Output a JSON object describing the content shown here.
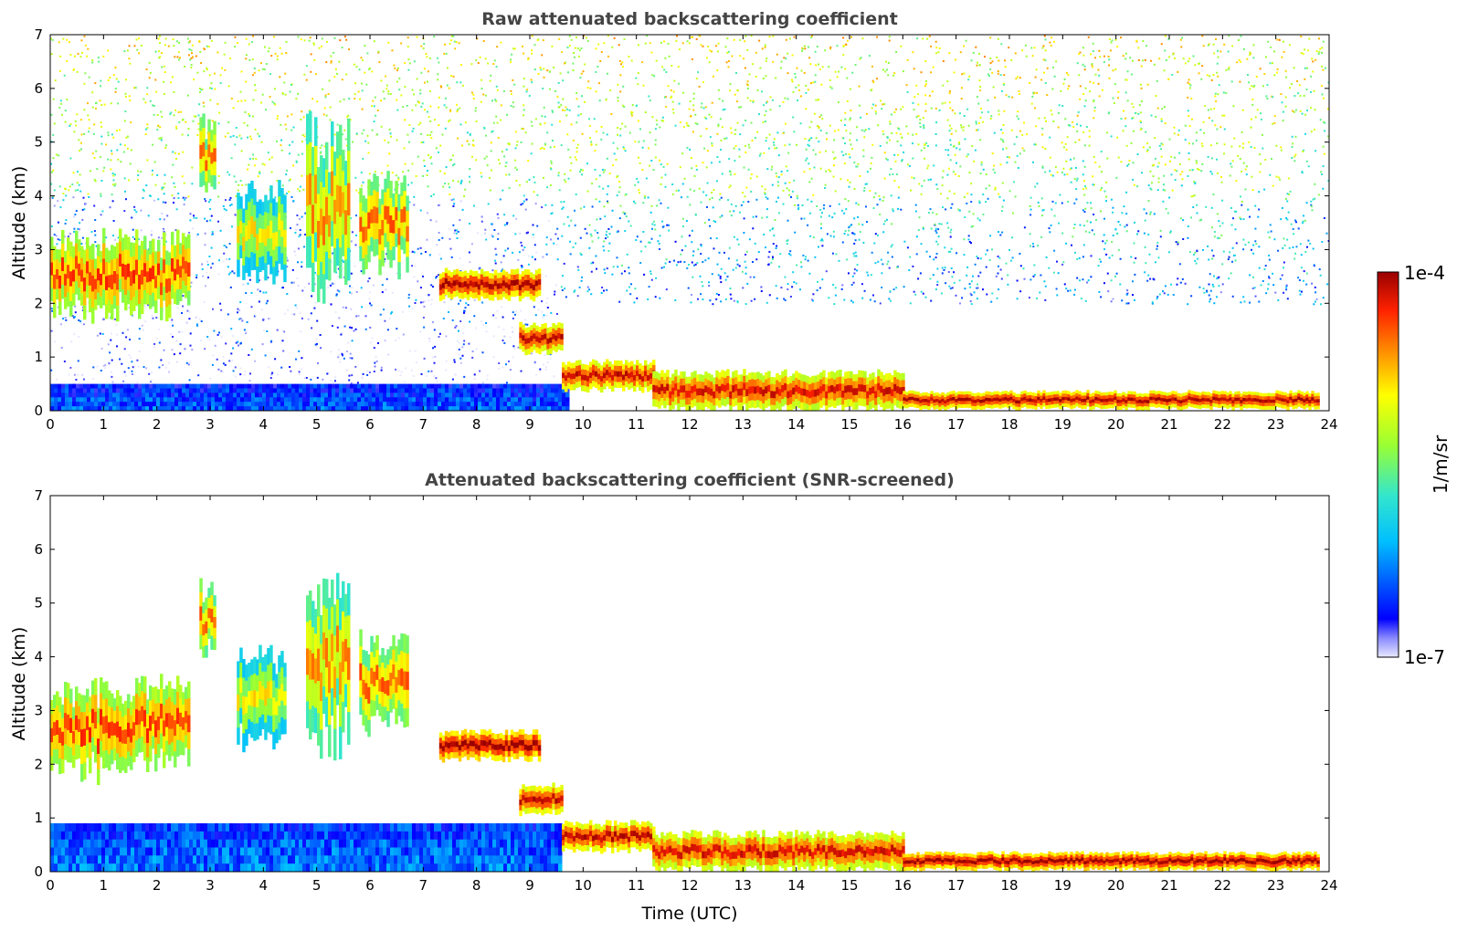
{
  "chart_data": [
    {
      "type": "heatmap",
      "title": "Raw attenuated backscattering coefficient",
      "xlabel": "",
      "ylabel": "Altitude (km)",
      "xlim": [
        0,
        24
      ],
      "ylim": [
        0,
        7
      ],
      "x_ticks": [
        "0",
        "1",
        "2",
        "3",
        "4",
        "5",
        "6",
        "7",
        "8",
        "9",
        "10",
        "11",
        "12",
        "13",
        "14",
        "15",
        "16",
        "17",
        "18",
        "19",
        "20",
        "21",
        "22",
        "23",
        "24"
      ],
      "y_ticks": [
        "0",
        "1",
        "2",
        "3",
        "4",
        "5",
        "6",
        "7"
      ],
      "grid": false,
      "features": [
        {
          "kind": "noise",
          "x": [
            0,
            24
          ],
          "y": [
            4.0,
            7.0
          ],
          "level": 0.6
        },
        {
          "kind": "noise",
          "x": [
            0,
            9.5
          ],
          "y": [
            0.5,
            4.0
          ],
          "level": 0.18
        },
        {
          "kind": "noise",
          "x": [
            9.5,
            24
          ],
          "y": [
            2.0,
            4.0
          ],
          "level": 0.35
        },
        {
          "kind": "band",
          "x": [
            0,
            9.7
          ],
          "y": [
            0,
            0.5
          ],
          "level": 0.08
        },
        {
          "kind": "cloud",
          "x": [
            0,
            2.6
          ],
          "y": [
            1.8,
            3.3
          ],
          "level": 0.85
        },
        {
          "kind": "cloud",
          "x": [
            2.8,
            3.1
          ],
          "y": [
            4.0,
            5.4
          ],
          "level": 0.8
        },
        {
          "kind": "cloud",
          "x": [
            3.5,
            4.4
          ],
          "y": [
            2.4,
            4.2
          ],
          "level": 0.65
        },
        {
          "kind": "cloud",
          "x": [
            4.8,
            5.6
          ],
          "y": [
            2.2,
            5.4
          ],
          "level": 0.75
        },
        {
          "kind": "cloud",
          "x": [
            5.8,
            6.7
          ],
          "y": [
            2.6,
            4.4
          ],
          "level": 0.8
        },
        {
          "kind": "layer",
          "x": [
            7.3,
            9.2
          ],
          "y": [
            2.1,
            2.6
          ],
          "level": 0.97
        },
        {
          "kind": "layer",
          "x": [
            8.8,
            9.6
          ],
          "y": [
            1.1,
            1.6
          ],
          "level": 0.95
        },
        {
          "kind": "layer",
          "x": [
            9.6,
            11.3
          ],
          "y": [
            0.4,
            0.9
          ],
          "level": 0.95
        },
        {
          "kind": "layer",
          "x": [
            11.3,
            16.0
          ],
          "y": [
            0.05,
            0.7
          ],
          "level": 0.92
        },
        {
          "kind": "layer",
          "x": [
            16.0,
            23.8
          ],
          "y": [
            0.05,
            0.35
          ],
          "level": 0.97
        }
      ]
    },
    {
      "type": "heatmap",
      "title": "Attenuated backscattering coefficient (SNR-screened)",
      "xlabel": "Time (UTC)",
      "ylabel": "Altitude (km)",
      "xlim": [
        0,
        24
      ],
      "ylim": [
        0,
        7
      ],
      "x_ticks": [
        "0",
        "1",
        "2",
        "3",
        "4",
        "5",
        "6",
        "7",
        "8",
        "9",
        "10",
        "11",
        "12",
        "13",
        "14",
        "15",
        "16",
        "17",
        "18",
        "19",
        "20",
        "21",
        "22",
        "23",
        "24"
      ],
      "y_ticks": [
        "0",
        "1",
        "2",
        "3",
        "4",
        "5",
        "6",
        "7"
      ],
      "grid": false,
      "features": [
        {
          "kind": "band",
          "x": [
            0,
            9.6
          ],
          "y": [
            0,
            0.9
          ],
          "level": 0.1
        },
        {
          "kind": "cloud",
          "x": [
            0,
            2.6
          ],
          "y": [
            1.8,
            3.5
          ],
          "level": 0.85
        },
        {
          "kind": "cloud",
          "x": [
            2.8,
            3.1
          ],
          "y": [
            4.0,
            5.4
          ],
          "level": 0.8
        },
        {
          "kind": "cloud",
          "x": [
            3.5,
            4.4
          ],
          "y": [
            2.4,
            4.2
          ],
          "level": 0.65
        },
        {
          "kind": "cloud",
          "x": [
            4.8,
            5.6
          ],
          "y": [
            2.2,
            5.4
          ],
          "level": 0.75
        },
        {
          "kind": "cloud",
          "x": [
            5.8,
            6.7
          ],
          "y": [
            2.6,
            4.4
          ],
          "level": 0.8
        },
        {
          "kind": "layer",
          "x": [
            7.3,
            9.2
          ],
          "y": [
            2.1,
            2.6
          ],
          "level": 1.0
        },
        {
          "kind": "layer",
          "x": [
            8.8,
            9.6
          ],
          "y": [
            1.1,
            1.6
          ],
          "level": 0.95
        },
        {
          "kind": "layer",
          "x": [
            9.6,
            11.3
          ],
          "y": [
            0.4,
            0.9
          ],
          "level": 0.95
        },
        {
          "kind": "layer",
          "x": [
            11.3,
            16.0
          ],
          "y": [
            0.05,
            0.7
          ],
          "level": 0.92
        },
        {
          "kind": "layer",
          "x": [
            16.0,
            23.8
          ],
          "y": [
            0.05,
            0.35
          ],
          "level": 1.0
        }
      ]
    }
  ],
  "colorbar": {
    "label": "1/m/sr",
    "max_label": "1e-4",
    "min_label": "1e-7",
    "range": [
      1e-07,
      0.0001
    ],
    "scale": "log",
    "colormap": [
      "#e8e8ff",
      "#0000ff",
      "#00bfff",
      "#33e6cc",
      "#99ff33",
      "#ffff00",
      "#ff8800",
      "#ff2200",
      "#990000"
    ]
  }
}
